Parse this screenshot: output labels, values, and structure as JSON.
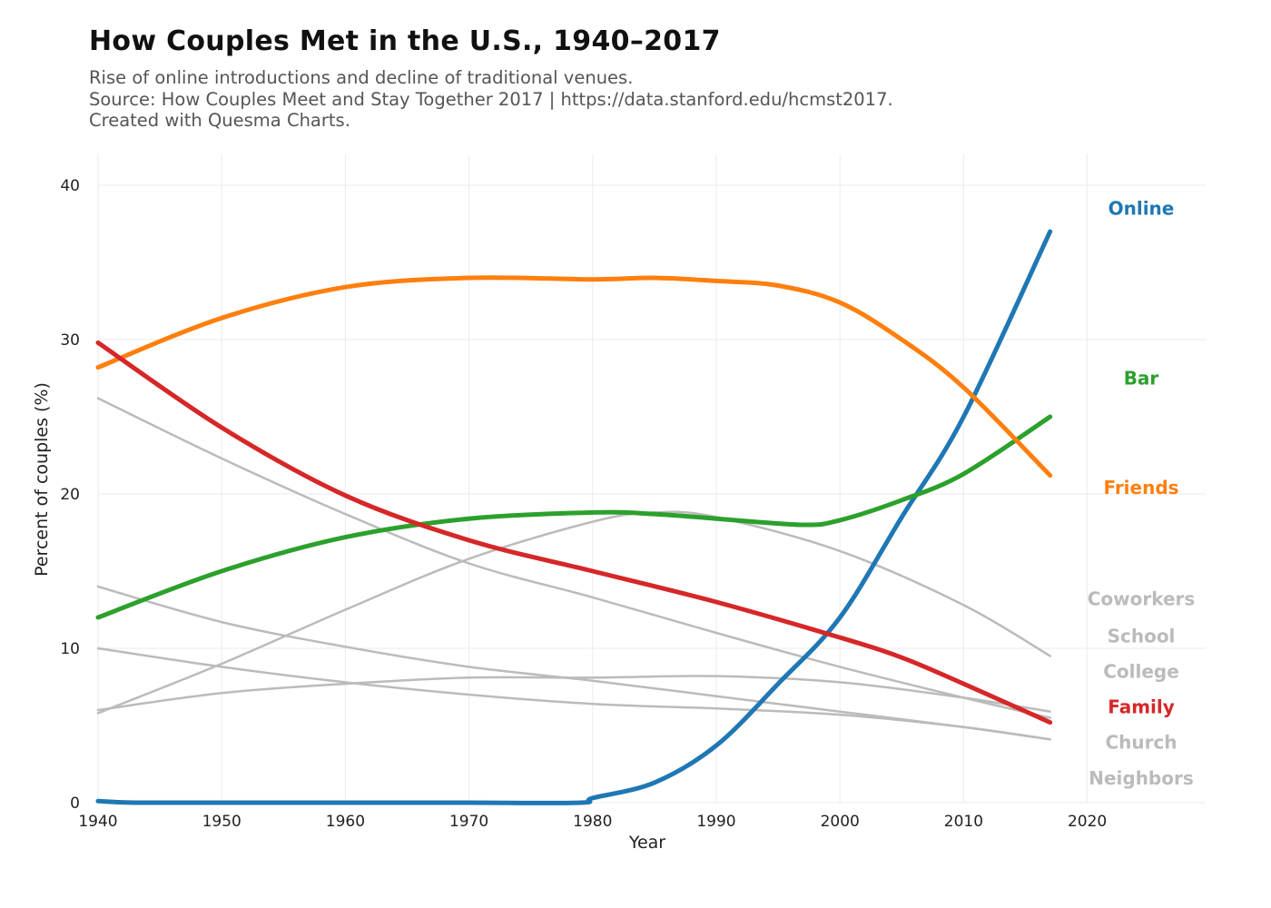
{
  "header": {
    "title": "How Couples Met in the U.S., 1940–2017",
    "subtitle_lines": [
      "Rise of online introductions and decline of traditional venues.",
      "Source: How Couples Meet and Stay Together 2017 | https://data.stanford.edu/hcmst2017.",
      "Created with Quesma Charts."
    ]
  },
  "chart_data": {
    "type": "line",
    "title": "How Couples Met in the U.S., 1940–2017",
    "xlabel": "Year",
    "ylabel": "Percent of couples (%)",
    "xlim": [
      1940,
      2028
    ],
    "ylim": [
      0,
      42
    ],
    "x_ticks": [
      1940,
      1950,
      1960,
      1970,
      1980,
      1990,
      2000,
      2010,
      2020
    ],
    "y_ticks": [
      0,
      10,
      20,
      30,
      40
    ],
    "grid": true,
    "legend": "direct labels at right end of lines",
    "series": [
      {
        "name": "Online",
        "color": "#1f77b4",
        "highlight": true,
        "points": [
          [
            1940,
            0.1
          ],
          [
            1943,
            0
          ],
          [
            1950,
            0
          ],
          [
            1960,
            0
          ],
          [
            1970,
            0
          ],
          [
            1979,
            0
          ],
          [
            1980,
            0.3
          ],
          [
            1985,
            1.3
          ],
          [
            1990,
            3.7
          ],
          [
            1995,
            7.7
          ],
          [
            2000,
            12
          ],
          [
            2005,
            18.5
          ],
          [
            2010,
            25
          ],
          [
            2017,
            37
          ]
        ]
      },
      {
        "name": "Bar",
        "color": "#2ca02c",
        "highlight": true,
        "points": [
          [
            1940,
            12
          ],
          [
            1950,
            15
          ],
          [
            1960,
            17.2
          ],
          [
            1970,
            18.4
          ],
          [
            1980,
            18.8
          ],
          [
            1985,
            18.7
          ],
          [
            1990,
            18.4
          ],
          [
            1997,
            18
          ],
          [
            2000,
            18.3
          ],
          [
            2005,
            19.6
          ],
          [
            2010,
            21.3
          ],
          [
            2017,
            25
          ]
        ]
      },
      {
        "name": "Friends",
        "color": "#ff7f0e",
        "highlight": true,
        "points": [
          [
            1940,
            28.2
          ],
          [
            1950,
            31.4
          ],
          [
            1960,
            33.4
          ],
          [
            1970,
            34
          ],
          [
            1980,
            33.9
          ],
          [
            1985,
            34
          ],
          [
            1990,
            33.8
          ],
          [
            1995,
            33.5
          ],
          [
            2000,
            32.4
          ],
          [
            2005,
            30
          ],
          [
            2010,
            26.9
          ],
          [
            2017,
            21.2
          ]
        ]
      },
      {
        "name": "Coworkers",
        "color": "#bbbbbb",
        "highlight": false,
        "points": [
          [
            1940,
            5.8
          ],
          [
            1950,
            9
          ],
          [
            1960,
            12.5
          ],
          [
            1970,
            15.8
          ],
          [
            1980,
            18.2
          ],
          [
            1985,
            18.8
          ],
          [
            1990,
            18.5
          ],
          [
            2000,
            16.3
          ],
          [
            2010,
            12.8
          ],
          [
            2017,
            9.5
          ]
        ]
      },
      {
        "name": "School",
        "color": "#bbbbbb",
        "highlight": false,
        "points": [
          [
            1940,
            26.2
          ],
          [
            1950,
            22.3
          ],
          [
            1960,
            18.7
          ],
          [
            1970,
            15.5
          ],
          [
            1980,
            13.3
          ],
          [
            1990,
            11
          ],
          [
            2000,
            8.8
          ],
          [
            2010,
            6.8
          ],
          [
            2017,
            5.5
          ]
        ]
      },
      {
        "name": "College",
        "color": "#bbbbbb",
        "highlight": false,
        "points": [
          [
            1940,
            6
          ],
          [
            1950,
            7.1
          ],
          [
            1960,
            7.7
          ],
          [
            1970,
            8.1
          ],
          [
            1980,
            8.1
          ],
          [
            1990,
            8.2
          ],
          [
            2000,
            7.8
          ],
          [
            2010,
            6.8
          ],
          [
            2017,
            5.9
          ]
        ]
      },
      {
        "name": "Family",
        "color": "#d62728",
        "highlight": true,
        "points": [
          [
            1940,
            29.8
          ],
          [
            1950,
            24.3
          ],
          [
            1960,
            19.9
          ],
          [
            1970,
            17
          ],
          [
            1980,
            15
          ],
          [
            1990,
            13
          ],
          [
            2000,
            10.7
          ],
          [
            2005,
            9.4
          ],
          [
            2010,
            7.7
          ],
          [
            2017,
            5.2
          ]
        ]
      },
      {
        "name": "Church",
        "color": "#bbbbbb",
        "highlight": false,
        "points": [
          [
            1940,
            14
          ],
          [
            1950,
            11.7
          ],
          [
            1960,
            10.1
          ],
          [
            1970,
            8.8
          ],
          [
            1980,
            7.9
          ],
          [
            1990,
            6.9
          ],
          [
            2000,
            5.9
          ],
          [
            2010,
            4.9
          ],
          [
            2017,
            4.1
          ]
        ]
      },
      {
        "name": "Neighbors",
        "color": "#bbbbbb",
        "highlight": false,
        "points": [
          [
            1940,
            10
          ],
          [
            1950,
            8.8
          ],
          [
            1960,
            7.8
          ],
          [
            1970,
            7
          ],
          [
            1980,
            6.4
          ],
          [
            1990,
            6.1
          ],
          [
            2000,
            5.7
          ],
          [
            2010,
            4.9
          ],
          [
            2017,
            4.1
          ]
        ]
      }
    ],
    "end_labels": [
      {
        "name": "Online",
        "color": "#1f77b4",
        "y": 38.5
      },
      {
        "name": "Bar",
        "color": "#2ca02c",
        "y": 27.5
      },
      {
        "name": "Friends",
        "color": "#ff7f0e",
        "y": 20.4
      },
      {
        "name": "Coworkers",
        "color": "#bbbbbb",
        "y": 13.2
      },
      {
        "name": "School",
        "color": "#bbbbbb",
        "y": 10.8
      },
      {
        "name": "College",
        "color": "#bbbbbb",
        "y": 8.5
      },
      {
        "name": "Family",
        "color": "#d62728",
        "y": 6.2
      },
      {
        "name": "Church",
        "color": "#bbbbbb",
        "y": 3.9
      },
      {
        "name": "Neighbors",
        "color": "#bbbbbb",
        "y": 1.6
      }
    ]
  }
}
